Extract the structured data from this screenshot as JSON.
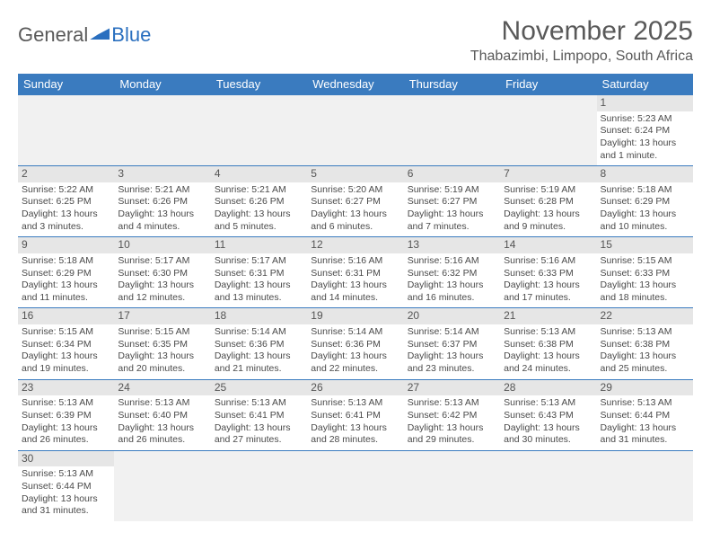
{
  "logo": {
    "text1": "General",
    "text2": "Blue"
  },
  "title": "November 2025",
  "location": "Thabazimbi, Limpopo, South Africa",
  "header_bg": "#3a7bbf",
  "daynum_bg": "#e6e6e6",
  "blank_bg": "#f1f1f1",
  "border_color": "#3a7bbf",
  "dow": [
    "Sunday",
    "Monday",
    "Tuesday",
    "Wednesday",
    "Thursday",
    "Friday",
    "Saturday"
  ],
  "weeks": [
    [
      {
        "blank": true
      },
      {
        "blank": true
      },
      {
        "blank": true
      },
      {
        "blank": true
      },
      {
        "blank": true
      },
      {
        "blank": true
      },
      {
        "n": "1",
        "sunrise": "Sunrise: 5:23 AM",
        "sunset": "Sunset: 6:24 PM",
        "daylight": "Daylight: 13 hours and 1 minute."
      }
    ],
    [
      {
        "n": "2",
        "sunrise": "Sunrise: 5:22 AM",
        "sunset": "Sunset: 6:25 PM",
        "daylight": "Daylight: 13 hours and 3 minutes."
      },
      {
        "n": "3",
        "sunrise": "Sunrise: 5:21 AM",
        "sunset": "Sunset: 6:26 PM",
        "daylight": "Daylight: 13 hours and 4 minutes."
      },
      {
        "n": "4",
        "sunrise": "Sunrise: 5:21 AM",
        "sunset": "Sunset: 6:26 PM",
        "daylight": "Daylight: 13 hours and 5 minutes."
      },
      {
        "n": "5",
        "sunrise": "Sunrise: 5:20 AM",
        "sunset": "Sunset: 6:27 PM",
        "daylight": "Daylight: 13 hours and 6 minutes."
      },
      {
        "n": "6",
        "sunrise": "Sunrise: 5:19 AM",
        "sunset": "Sunset: 6:27 PM",
        "daylight": "Daylight: 13 hours and 7 minutes."
      },
      {
        "n": "7",
        "sunrise": "Sunrise: 5:19 AM",
        "sunset": "Sunset: 6:28 PM",
        "daylight": "Daylight: 13 hours and 9 minutes."
      },
      {
        "n": "8",
        "sunrise": "Sunrise: 5:18 AM",
        "sunset": "Sunset: 6:29 PM",
        "daylight": "Daylight: 13 hours and 10 minutes."
      }
    ],
    [
      {
        "n": "9",
        "sunrise": "Sunrise: 5:18 AM",
        "sunset": "Sunset: 6:29 PM",
        "daylight": "Daylight: 13 hours and 11 minutes."
      },
      {
        "n": "10",
        "sunrise": "Sunrise: 5:17 AM",
        "sunset": "Sunset: 6:30 PM",
        "daylight": "Daylight: 13 hours and 12 minutes."
      },
      {
        "n": "11",
        "sunrise": "Sunrise: 5:17 AM",
        "sunset": "Sunset: 6:31 PM",
        "daylight": "Daylight: 13 hours and 13 minutes."
      },
      {
        "n": "12",
        "sunrise": "Sunrise: 5:16 AM",
        "sunset": "Sunset: 6:31 PM",
        "daylight": "Daylight: 13 hours and 14 minutes."
      },
      {
        "n": "13",
        "sunrise": "Sunrise: 5:16 AM",
        "sunset": "Sunset: 6:32 PM",
        "daylight": "Daylight: 13 hours and 16 minutes."
      },
      {
        "n": "14",
        "sunrise": "Sunrise: 5:16 AM",
        "sunset": "Sunset: 6:33 PM",
        "daylight": "Daylight: 13 hours and 17 minutes."
      },
      {
        "n": "15",
        "sunrise": "Sunrise: 5:15 AM",
        "sunset": "Sunset: 6:33 PM",
        "daylight": "Daylight: 13 hours and 18 minutes."
      }
    ],
    [
      {
        "n": "16",
        "sunrise": "Sunrise: 5:15 AM",
        "sunset": "Sunset: 6:34 PM",
        "daylight": "Daylight: 13 hours and 19 minutes."
      },
      {
        "n": "17",
        "sunrise": "Sunrise: 5:15 AM",
        "sunset": "Sunset: 6:35 PM",
        "daylight": "Daylight: 13 hours and 20 minutes."
      },
      {
        "n": "18",
        "sunrise": "Sunrise: 5:14 AM",
        "sunset": "Sunset: 6:36 PM",
        "daylight": "Daylight: 13 hours and 21 minutes."
      },
      {
        "n": "19",
        "sunrise": "Sunrise: 5:14 AM",
        "sunset": "Sunset: 6:36 PM",
        "daylight": "Daylight: 13 hours and 22 minutes."
      },
      {
        "n": "20",
        "sunrise": "Sunrise: 5:14 AM",
        "sunset": "Sunset: 6:37 PM",
        "daylight": "Daylight: 13 hours and 23 minutes."
      },
      {
        "n": "21",
        "sunrise": "Sunrise: 5:13 AM",
        "sunset": "Sunset: 6:38 PM",
        "daylight": "Daylight: 13 hours and 24 minutes."
      },
      {
        "n": "22",
        "sunrise": "Sunrise: 5:13 AM",
        "sunset": "Sunset: 6:38 PM",
        "daylight": "Daylight: 13 hours and 25 minutes."
      }
    ],
    [
      {
        "n": "23",
        "sunrise": "Sunrise: 5:13 AM",
        "sunset": "Sunset: 6:39 PM",
        "daylight": "Daylight: 13 hours and 26 minutes."
      },
      {
        "n": "24",
        "sunrise": "Sunrise: 5:13 AM",
        "sunset": "Sunset: 6:40 PM",
        "daylight": "Daylight: 13 hours and 26 minutes."
      },
      {
        "n": "25",
        "sunrise": "Sunrise: 5:13 AM",
        "sunset": "Sunset: 6:41 PM",
        "daylight": "Daylight: 13 hours and 27 minutes."
      },
      {
        "n": "26",
        "sunrise": "Sunrise: 5:13 AM",
        "sunset": "Sunset: 6:41 PM",
        "daylight": "Daylight: 13 hours and 28 minutes."
      },
      {
        "n": "27",
        "sunrise": "Sunrise: 5:13 AM",
        "sunset": "Sunset: 6:42 PM",
        "daylight": "Daylight: 13 hours and 29 minutes."
      },
      {
        "n": "28",
        "sunrise": "Sunrise: 5:13 AM",
        "sunset": "Sunset: 6:43 PM",
        "daylight": "Daylight: 13 hours and 30 minutes."
      },
      {
        "n": "29",
        "sunrise": "Sunrise: 5:13 AM",
        "sunset": "Sunset: 6:44 PM",
        "daylight": "Daylight: 13 hours and 31 minutes."
      }
    ],
    [
      {
        "n": "30",
        "sunrise": "Sunrise: 5:13 AM",
        "sunset": "Sunset: 6:44 PM",
        "daylight": "Daylight: 13 hours and 31 minutes."
      },
      {
        "blank": true
      },
      {
        "blank": true
      },
      {
        "blank": true
      },
      {
        "blank": true
      },
      {
        "blank": true
      },
      {
        "blank": true
      }
    ]
  ]
}
